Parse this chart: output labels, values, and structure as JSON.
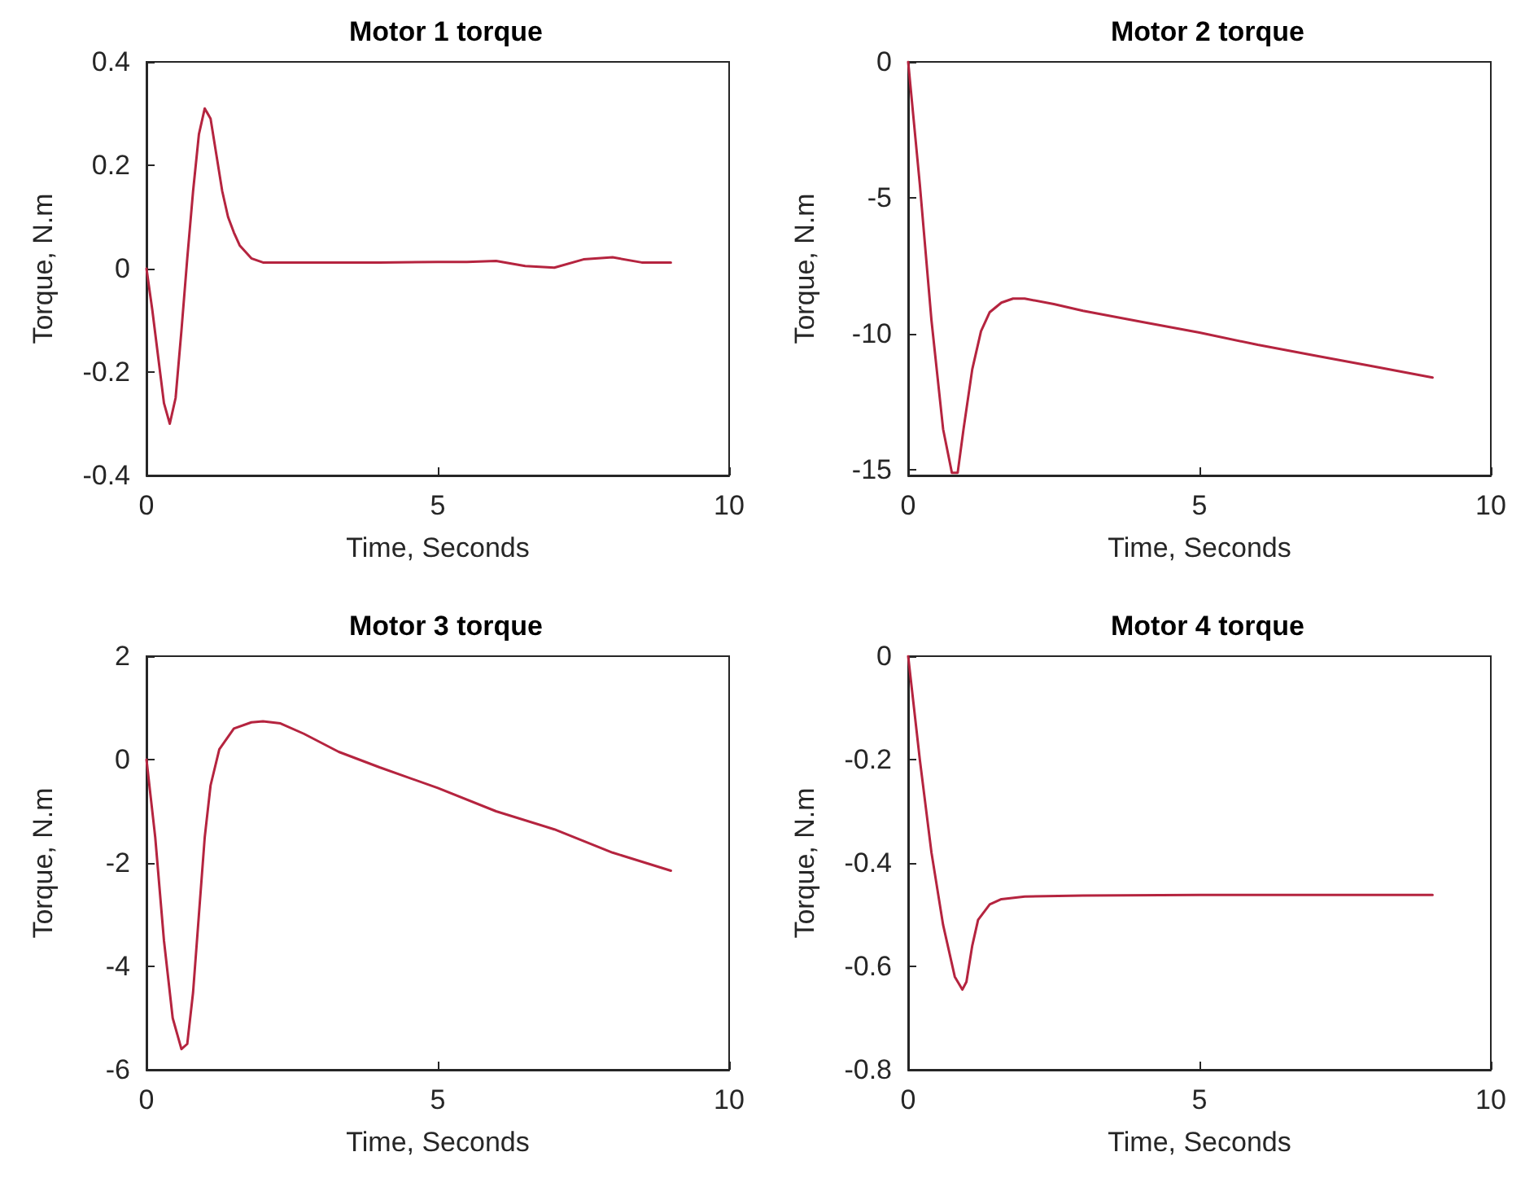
{
  "chart_data": [
    {
      "type": "line",
      "title": "Motor 1 torque",
      "xlabel": "Time, Seconds",
      "ylabel": "Torque, N.m",
      "xlim": [
        0,
        10
      ],
      "xticks": [
        0,
        5,
        10
      ],
      "ylim": [
        -0.4,
        0.4
      ],
      "yticks": [
        -0.4,
        -0.2,
        0,
        0.2,
        0.4
      ],
      "grid": false,
      "marker": "none",
      "line_style": "solid",
      "x": [
        0,
        0.1,
        0.2,
        0.3,
        0.4,
        0.5,
        0.6,
        0.7,
        0.8,
        0.9,
        1.0,
        1.1,
        1.2,
        1.3,
        1.4,
        1.5,
        1.6,
        1.8,
        2.0,
        3,
        4,
        5,
        5.5,
        6,
        6.5,
        7,
        7.5,
        8,
        8.5,
        9
      ],
      "series": [
        {
          "color": "#b5243f",
          "values": [
            0,
            -0.08,
            -0.17,
            -0.26,
            -0.3,
            -0.25,
            -0.12,
            0.02,
            0.15,
            0.26,
            0.31,
            0.29,
            0.22,
            0.15,
            0.1,
            0.07,
            0.045,
            0.02,
            0.012,
            0.012,
            0.012,
            0.013,
            0.013,
            0.015,
            0.005,
            0.002,
            0.018,
            0.022,
            0.012,
            0.012
          ]
        }
      ]
    },
    {
      "type": "line",
      "title": "Motor 2 torque",
      "xlabel": "Time, Seconds",
      "ylabel": "Torque, N.m",
      "xlim": [
        0,
        10
      ],
      "xticks": [
        0,
        5,
        10
      ],
      "ylim": [
        -15.2,
        0
      ],
      "yticks": [
        -15,
        -10,
        -5,
        0
      ],
      "grid": false,
      "marker": "none",
      "line_style": "solid",
      "x": [
        0,
        0.2,
        0.4,
        0.6,
        0.75,
        0.85,
        0.95,
        1.1,
        1.25,
        1.4,
        1.6,
        1.8,
        2.0,
        2.5,
        3,
        4,
        5,
        6,
        7,
        8,
        9
      ],
      "series": [
        {
          "color": "#b5243f",
          "values": [
            0,
            -4.5,
            -9.5,
            -13.5,
            -15.1,
            -15.1,
            -13.5,
            -11.3,
            -9.9,
            -9.2,
            -8.85,
            -8.7,
            -8.7,
            -8.9,
            -9.15,
            -9.55,
            -9.95,
            -10.4,
            -10.8,
            -11.2,
            -11.6
          ]
        }
      ]
    },
    {
      "type": "line",
      "title": "Motor 3 torque",
      "xlabel": "Time, Seconds",
      "ylabel": "Torque, N.m",
      "xlim": [
        0,
        10
      ],
      "xticks": [
        0,
        5,
        10
      ],
      "ylim": [
        -6,
        2
      ],
      "yticks": [
        -6,
        -4,
        -2,
        0,
        2
      ],
      "grid": false,
      "marker": "none",
      "line_style": "solid",
      "x": [
        0,
        0.15,
        0.3,
        0.45,
        0.6,
        0.7,
        0.8,
        0.9,
        1.0,
        1.1,
        1.25,
        1.5,
        1.8,
        2.0,
        2.3,
        2.7,
        3.3,
        4,
        5,
        6,
        7,
        8,
        9
      ],
      "series": [
        {
          "color": "#b5243f",
          "values": [
            0,
            -1.5,
            -3.5,
            -5.0,
            -5.6,
            -5.5,
            -4.5,
            -3.0,
            -1.5,
            -0.5,
            0.2,
            0.6,
            0.72,
            0.74,
            0.7,
            0.5,
            0.15,
            -0.15,
            -0.55,
            -1.0,
            -1.35,
            -1.8,
            -2.15
          ]
        }
      ]
    },
    {
      "type": "line",
      "title": "Motor 4 torque",
      "xlabel": "Time, Seconds",
      "ylabel": "Torque, N.m",
      "xlim": [
        0,
        10
      ],
      "xticks": [
        0,
        5,
        10
      ],
      "ylim": [
        -0.8,
        0
      ],
      "yticks": [
        -0.8,
        -0.6,
        -0.4,
        -0.2,
        0
      ],
      "grid": false,
      "marker": "none",
      "line_style": "solid",
      "x": [
        0,
        0.1,
        0.2,
        0.4,
        0.6,
        0.8,
        0.93,
        1.0,
        1.1,
        1.2,
        1.4,
        1.6,
        2,
        3,
        5,
        9
      ],
      "series": [
        {
          "color": "#b5243f",
          "values": [
            0,
            -0.1,
            -0.2,
            -0.38,
            -0.52,
            -0.62,
            -0.645,
            -0.63,
            -0.56,
            -0.51,
            -0.48,
            -0.47,
            -0.465,
            -0.463,
            -0.462,
            -0.462
          ]
        }
      ]
    }
  ]
}
